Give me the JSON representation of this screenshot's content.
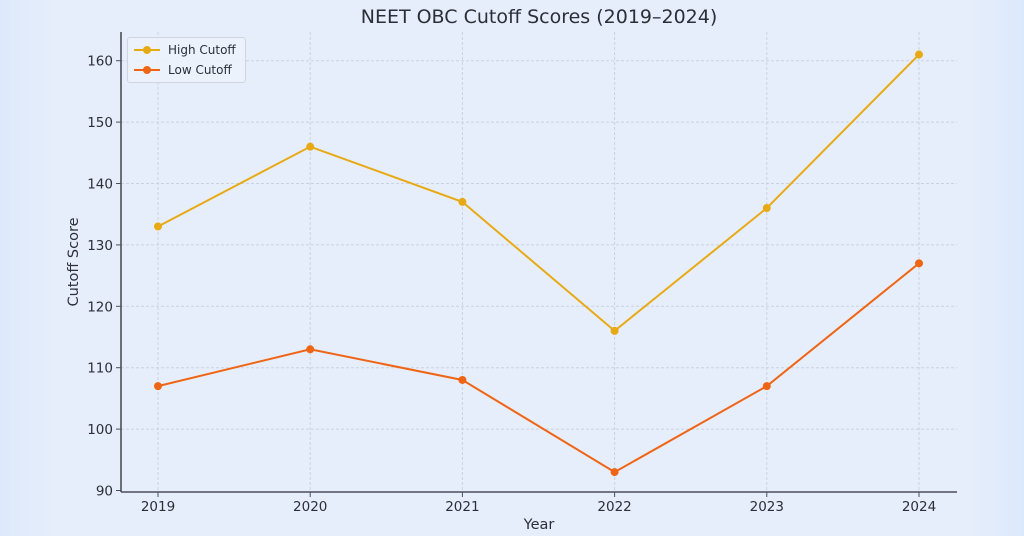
{
  "title": "NEET OBC Cutoff Scores (2019–2024)",
  "chart_data": {
    "type": "line",
    "title": "NEET OBC Cutoff Scores (2019–2024)",
    "xlabel": "Year",
    "ylabel": "Cutoff Score",
    "categories": [
      "2019",
      "2020",
      "2021",
      "2022",
      "2023",
      "2024"
    ],
    "series": [
      {
        "name": "High Cutoff",
        "color": "#e8aa14",
        "values": [
          133,
          146,
          137,
          116,
          136,
          161
        ]
      },
      {
        "name": "Low Cutoff",
        "color": "#ef6515",
        "values": [
          107,
          113,
          108,
          93,
          107,
          127
        ]
      }
    ],
    "ylim": [
      90,
      164
    ],
    "yticks": [
      90,
      100,
      110,
      120,
      130,
      140,
      150,
      160
    ],
    "grid": true,
    "legend_position": "upper left"
  },
  "legend": {
    "items": [
      {
        "label": "High Cutoff",
        "color": "#e8aa14"
      },
      {
        "label": "Low Cutoff",
        "color": "#ef6515"
      }
    ]
  }
}
